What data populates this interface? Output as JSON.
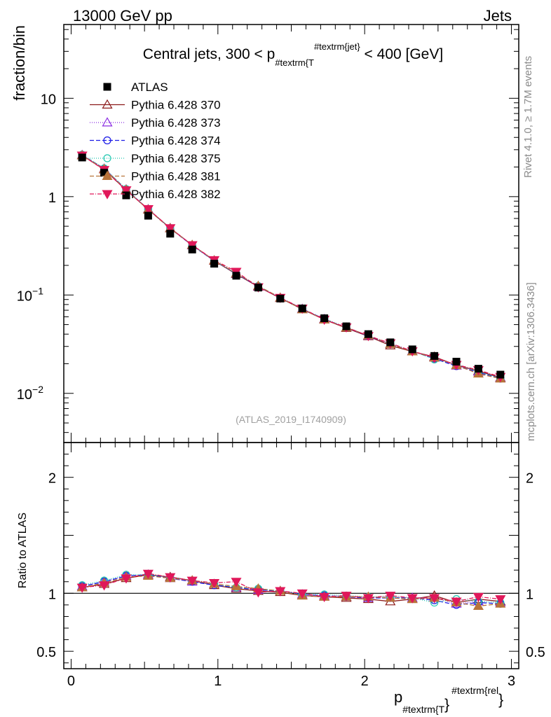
{
  "header": {
    "left": "13000 GeV pp",
    "right": "Jets"
  },
  "side_labels": {
    "rivet": "Rivet 4.1.0, ≥ 1.7M events",
    "mcplots": "mcplots.cern.ch [arXiv:1306.3436]"
  },
  "chart_data": {
    "type": "line",
    "title": "Central jets, 300 < p_{#textrm{T}}^{#textrm{jet}} < 400 [GeV]",
    "title_parts": {
      "a": "Central jets, 300 < p",
      "sub": "#textrm{T",
      "sup": "#textrm{jet}",
      "b": " < 400 [GeV]"
    },
    "watermark": "(ATLAS_2019_I1740909)",
    "ylabel": "fraction/bin",
    "ratio_ylabel": "Ratio to ATLAS",
    "xlabel_parts": {
      "main": "p",
      "sub": "#textrm{T",
      "sup": "#textrm{rel"
    },
    "xlim": [
      -0.05,
      3.05
    ],
    "ylim_log10": [
      -2.5,
      1.75
    ],
    "ratio_ylim": [
      0.35,
      2.3
    ],
    "top_y_ticks": [
      {
        "exp": 1,
        "label": "10",
        "sup": ""
      },
      {
        "exp": 0,
        "label": "1",
        "sup": ""
      },
      {
        "exp": -1,
        "label": "10",
        "sup": "−1"
      },
      {
        "exp": -2,
        "label": "10",
        "sup": "−2"
      }
    ],
    "ratio_y_ticks": [
      0.5,
      1,
      2
    ],
    "x_ticks": [
      0,
      1,
      2,
      3
    ],
    "x": [
      0.075,
      0.225,
      0.375,
      0.525,
      0.675,
      0.825,
      0.975,
      1.125,
      1.275,
      1.425,
      1.575,
      1.725,
      1.875,
      2.025,
      2.175,
      2.325,
      2.475,
      2.625,
      2.775,
      2.925
    ],
    "data": {
      "name": "ATLAS",
      "color": "#000000",
      "values": [
        2.5,
        1.75,
        1.03,
        0.64,
        0.42,
        0.29,
        0.208,
        0.157,
        0.119,
        0.092,
        0.073,
        0.058,
        0.048,
        0.04,
        0.033,
        0.028,
        0.024,
        0.021,
        0.0178,
        0.0155
      ]
    },
    "series": [
      {
        "name": "Pythia 6.428 370",
        "color": "#8b1a1a",
        "dash": "",
        "marker": "triangle-up-open",
        "ratio": [
          1.05,
          1.08,
          1.13,
          1.16,
          1.14,
          1.11,
          1.07,
          1.04,
          1.02,
          1.01,
          0.98,
          0.97,
          0.96,
          0.95,
          0.93,
          0.95,
          0.98,
          0.92,
          0.95,
          0.93
        ]
      },
      {
        "name": "Pythia 6.428 373",
        "color": "#8a2be2",
        "dash": "1,2",
        "marker": "triangle-up-open",
        "ratio": [
          1.06,
          1.1,
          1.15,
          1.16,
          1.13,
          1.1,
          1.08,
          1.05,
          1.03,
          1.02,
          0.99,
          0.98,
          0.97,
          0.96,
          0.96,
          0.96,
          0.96,
          0.91,
          0.93,
          0.92
        ]
      },
      {
        "name": "Pythia 6.428 374",
        "color": "#1a1ae6",
        "dash": "6,3",
        "marker": "circle-open",
        "ratio": [
          1.06,
          1.1,
          1.15,
          1.16,
          1.13,
          1.1,
          1.07,
          1.05,
          1.03,
          1.02,
          0.99,
          0.98,
          0.97,
          0.96,
          0.96,
          0.96,
          0.94,
          0.9,
          0.92,
          0.91
        ]
      },
      {
        "name": "Pythia 6.428 375",
        "color": "#20c7b0",
        "dash": "1,2",
        "marker": "circle-open",
        "ratio": [
          1.07,
          1.11,
          1.16,
          1.16,
          1.14,
          1.11,
          1.08,
          1.05,
          1.04,
          1.02,
          0.99,
          0.99,
          0.98,
          0.97,
          0.97,
          0.96,
          0.92,
          0.95,
          0.93,
          0.92
        ]
      },
      {
        "name": "Pythia 6.428 381",
        "color": "#b8743a",
        "dash": "6,3",
        "marker": "triangle-up-filled",
        "ratio": [
          1.05,
          1.09,
          1.14,
          1.15,
          1.13,
          1.11,
          1.08,
          1.06,
          1.04,
          1.02,
          0.98,
          0.97,
          0.97,
          0.97,
          0.96,
          0.95,
          0.96,
          0.92,
          0.89,
          0.91
        ]
      },
      {
        "name": "Pythia 6.428 382",
        "color": "#e0185a",
        "dash": "6,2,1,2",
        "marker": "triangle-down-filled",
        "ratio": [
          1.05,
          1.07,
          1.13,
          1.17,
          1.14,
          1.11,
          1.09,
          1.1,
          1.01,
          1.02,
          1.0,
          0.97,
          0.98,
          0.96,
          0.98,
          0.96,
          0.96,
          0.93,
          0.97,
          0.95
        ]
      }
    ]
  }
}
